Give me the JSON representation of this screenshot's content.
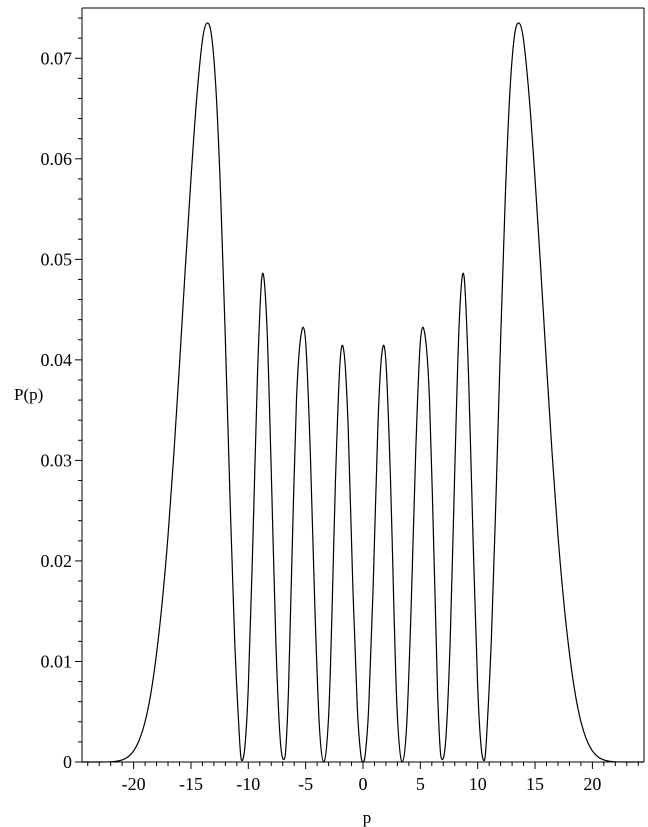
{
  "chart_data": {
    "type": "line",
    "xlabel": "p",
    "ylabel": "P(p)",
    "xlim": [
      -24.5,
      24.5
    ],
    "ylim": [
      0,
      0.075
    ],
    "x_ticks": [
      -20,
      -15,
      -10,
      -5,
      0,
      5,
      10,
      15,
      20
    ],
    "x_tick_labels": [
      "-20",
      "-15",
      "-10",
      "-5",
      "0",
      "5",
      "10",
      "15",
      "20"
    ],
    "y_ticks": [
      0,
      0.01,
      0.02,
      0.03,
      0.04,
      0.05,
      0.06,
      0.07
    ],
    "y_tick_labels": [
      "0",
      "0.01",
      "0.02",
      "0.03",
      "0.04",
      "0.05",
      "0.06",
      "0.07"
    ],
    "grid": false,
    "line_color": "#000000",
    "series": [
      {
        "x": [
          -24.5,
          -24,
          -23,
          -22,
          -21.5,
          -21,
          -20.5,
          -20,
          -19.5,
          -19,
          -18.5,
          -18,
          -17.5,
          -17,
          -16.5,
          -16,
          -15.5,
          -15,
          -14.5,
          -14,
          -13.6,
          -13.2,
          -12.8,
          -12.4,
          -12,
          -11.6,
          -11.2,
          -10.8,
          -10.6,
          -10.3,
          -10,
          -9.6,
          -9.2,
          -8.8,
          -8.4,
          -8,
          -7.6,
          -7.2,
          -6.8,
          -6.5,
          -6.2,
          -5.8,
          -5.4,
          -5,
          -4.6,
          -4.2,
          -3.8,
          -3.4,
          -3.0,
          -2.7,
          -2.4,
          -2.0,
          -1.65,
          -1.3,
          -0.9,
          -0.5,
          -0.2,
          0,
          0.2,
          0.5,
          0.9,
          1.3,
          1.65,
          2.0,
          2.4,
          2.7,
          3.0,
          3.4,
          3.8,
          4.2,
          4.6,
          5,
          5.4,
          5.8,
          6.2,
          6.5,
          6.8,
          7.2,
          7.6,
          8,
          8.4,
          8.8,
          9.2,
          9.6,
          10,
          10.3,
          10.6,
          10.8,
          11.2,
          11.6,
          12,
          12.4,
          12.8,
          13.2,
          13.6,
          14,
          14.5,
          15,
          15.5,
          16,
          16.5,
          17,
          17.5,
          18,
          18.5,
          19,
          19.5,
          20,
          20.5,
          21,
          21.5,
          22,
          23,
          24,
          24.5
        ],
        "y": [
          0,
          0,
          0,
          2e-05,
          8e-05,
          0.0002,
          0.0005,
          0.0011,
          0.0022,
          0.004,
          0.0068,
          0.0108,
          0.016,
          0.0225,
          0.0305,
          0.0395,
          0.049,
          0.058,
          0.066,
          0.0718,
          0.0735,
          0.0722,
          0.0665,
          0.056,
          0.042,
          0.0265,
          0.0125,
          0.003,
          0.0002,
          0.0015,
          0.0075,
          0.022,
          0.0385,
          0.0484,
          0.044,
          0.029,
          0.012,
          0.002,
          0.0005,
          0.007,
          0.02,
          0.036,
          0.0425,
          0.0418,
          0.031,
          0.0155,
          0.0035,
          0.0,
          0.0045,
          0.015,
          0.028,
          0.0398,
          0.0407,
          0.0335,
          0.018,
          0.0055,
          0.0008,
          0.0,
          0.0008,
          0.0055,
          0.018,
          0.0335,
          0.0407,
          0.0398,
          0.028,
          0.015,
          0.0045,
          0.0,
          0.0035,
          0.0155,
          0.031,
          0.0418,
          0.0425,
          0.036,
          0.02,
          0.007,
          0.0005,
          0.002,
          0.012,
          0.029,
          0.044,
          0.0484,
          0.0385,
          0.022,
          0.0075,
          0.0015,
          0.0002,
          0.003,
          0.0125,
          0.0265,
          0.042,
          0.056,
          0.0665,
          0.0722,
          0.0735,
          0.0718,
          0.066,
          0.058,
          0.049,
          0.0395,
          0.0305,
          0.0225,
          0.016,
          0.0108,
          0.0068,
          0.004,
          0.0022,
          0.0011,
          0.0005,
          0.0002,
          8e-05,
          2e-05,
          0,
          0,
          0
        ]
      }
    ]
  }
}
